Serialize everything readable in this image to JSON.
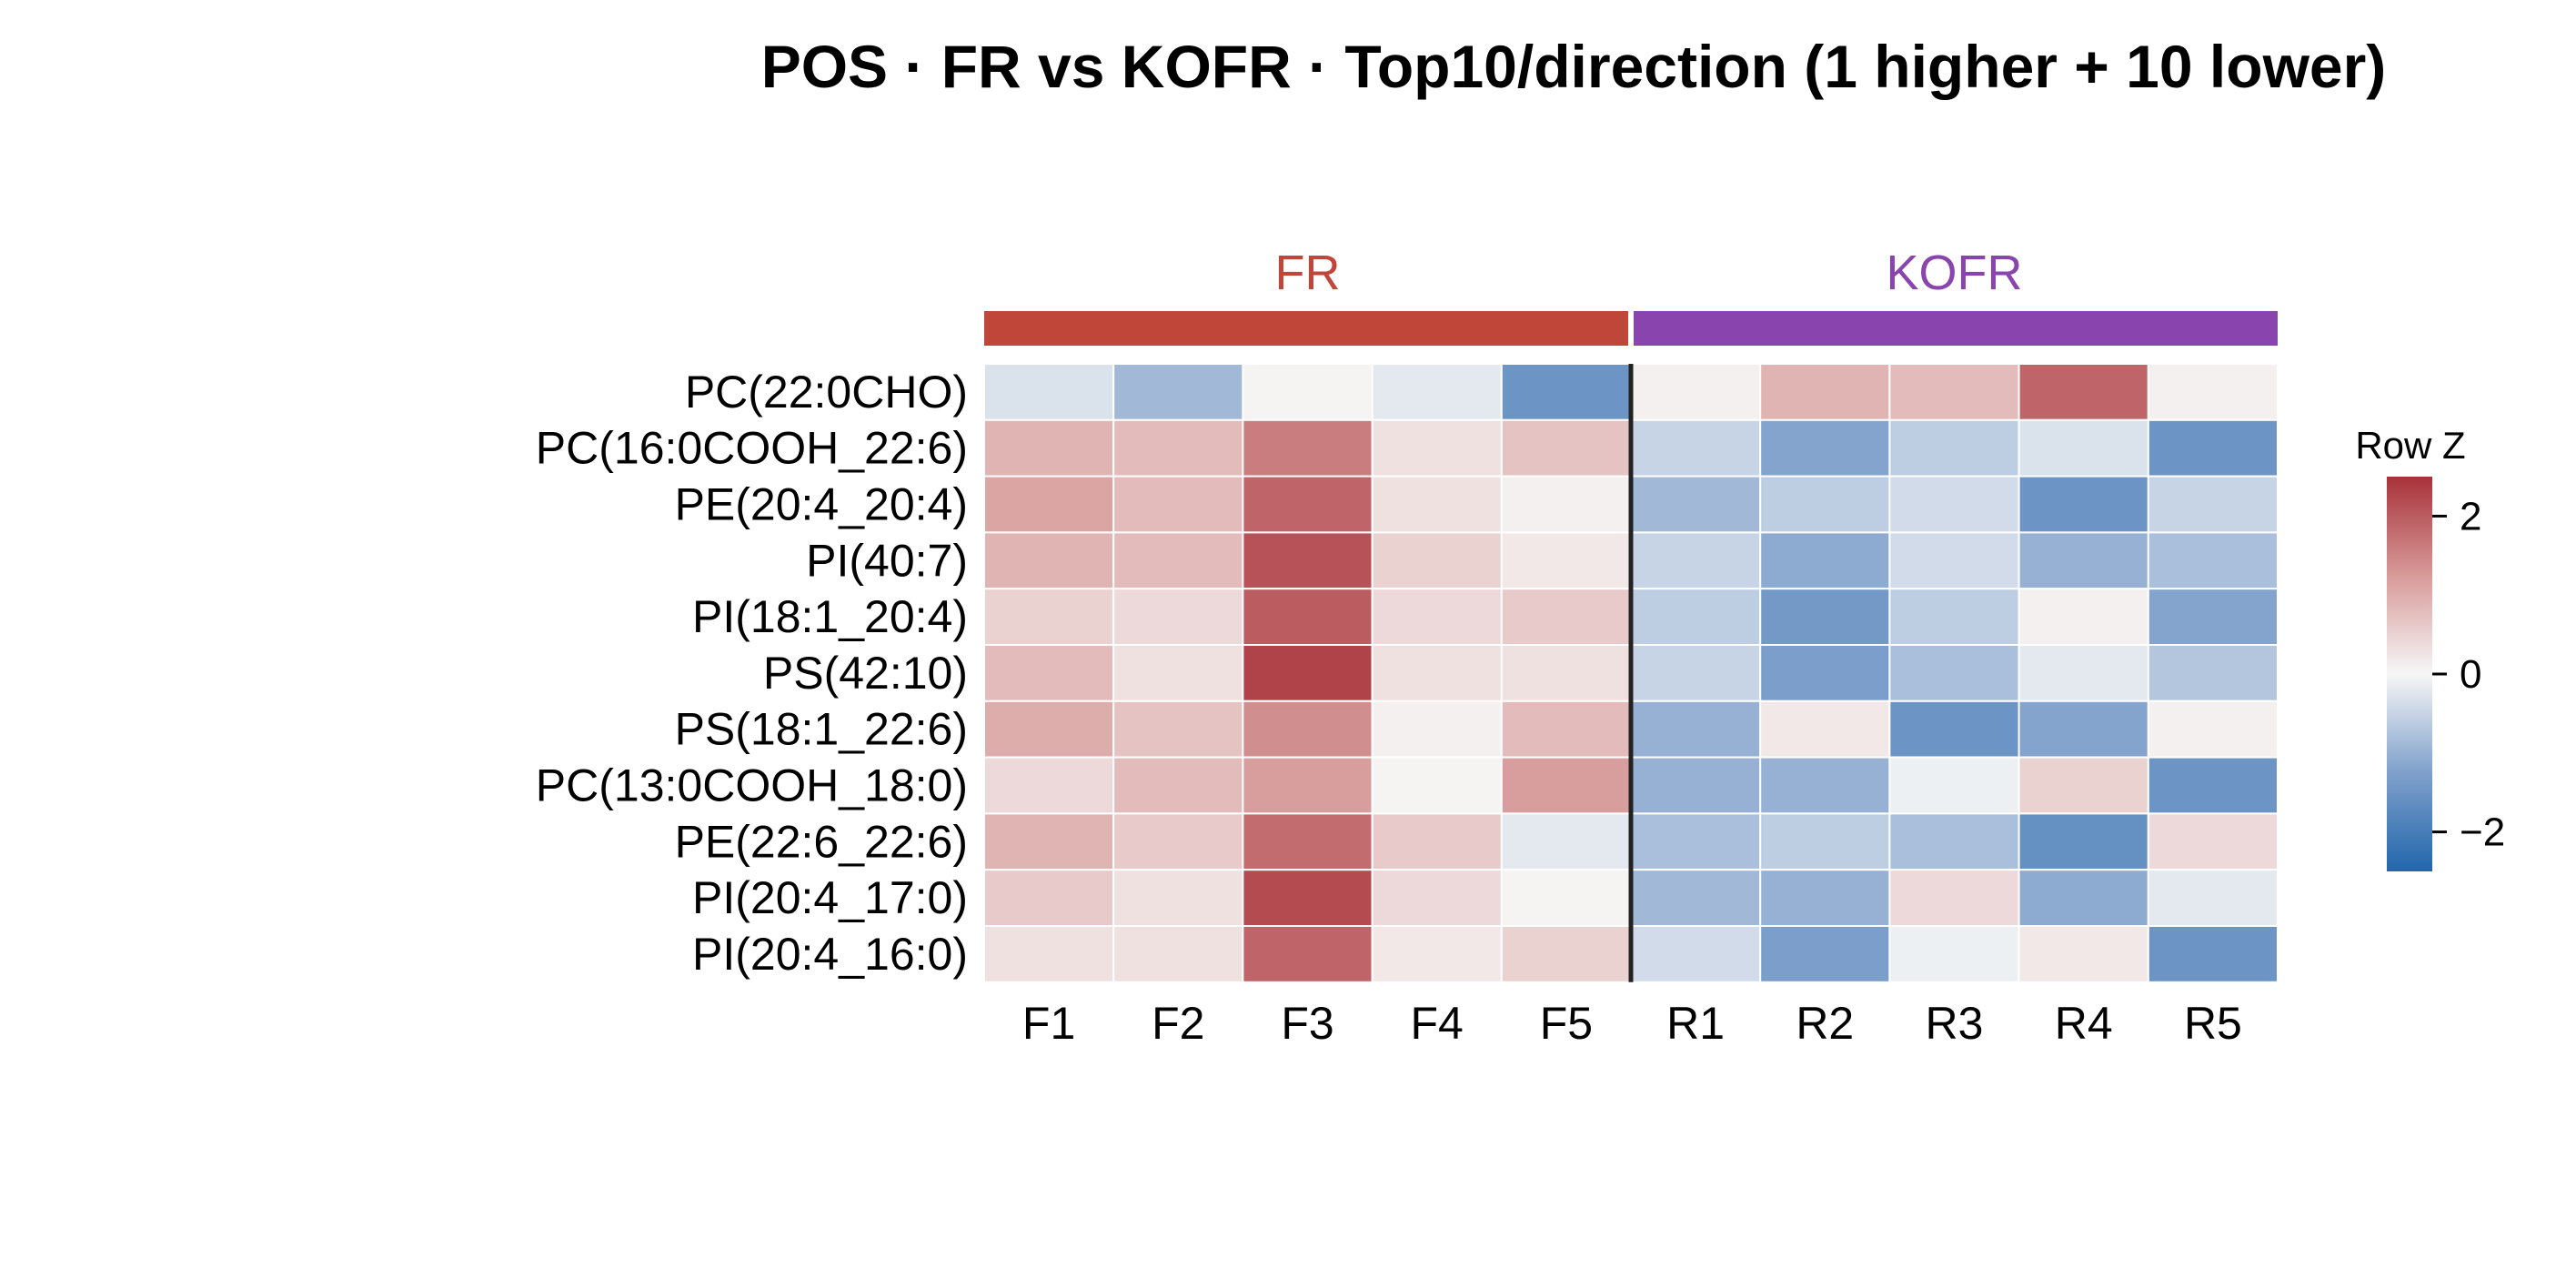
{
  "chart_data": {
    "type": "heatmap",
    "title": "POS · FR vs KOFR · Top10/direction (1 higher + 10 lower)",
    "groups": [
      {
        "name": "FR",
        "color": "#c0463a",
        "columns": [
          "F1",
          "F2",
          "F3",
          "F4",
          "F5"
        ]
      },
      {
        "name": "KOFR",
        "color": "#8a44ad",
        "columns": [
          "R1",
          "R2",
          "R3",
          "R4",
          "R5"
        ]
      }
    ],
    "columns": [
      "F1",
      "F2",
      "F3",
      "F4",
      "F5",
      "R1",
      "R2",
      "R3",
      "R4",
      "R5"
    ],
    "rows": [
      "PC(22:0CHO)",
      "PC(16:0COOH_22:6)",
      "PE(20:4_20:4)",
      "PI(40:7)",
      "PI(18:1_20:4)",
      "PS(42:10)",
      "PS(18:1_22:6)",
      "PC(13:0COOH_18:0)",
      "PE(22:6_22:6)",
      "PI(20:4_17:0)",
      "PI(20:4_16:0)"
    ],
    "values": [
      [
        -0.3,
        -0.9,
        0.05,
        -0.2,
        -1.5,
        0.1,
        0.9,
        0.8,
        1.9,
        0.1
      ],
      [
        0.9,
        0.8,
        1.6,
        0.3,
        0.7,
        -0.5,
        -1.2,
        -0.6,
        -0.3,
        -1.5
      ],
      [
        1.1,
        0.8,
        1.9,
        0.3,
        0.1,
        -0.9,
        -0.6,
        -0.4,
        -1.5,
        -0.5
      ],
      [
        0.9,
        0.8,
        2.1,
        0.5,
        0.2,
        -0.5,
        -1.1,
        -0.4,
        -1.0,
        -0.8
      ],
      [
        0.5,
        0.4,
        2.0,
        0.4,
        0.6,
        -0.6,
        -1.4,
        -0.6,
        0.1,
        -1.2
      ],
      [
        0.8,
        0.3,
        2.3,
        0.3,
        0.3,
        -0.5,
        -1.3,
        -0.8,
        -0.2,
        -0.7
      ],
      [
        1.0,
        0.7,
        1.4,
        0.1,
        0.8,
        -1.0,
        0.2,
        -1.5,
        -1.2,
        0.1
      ],
      [
        0.4,
        0.8,
        1.2,
        0.05,
        1.2,
        -1.0,
        -1.0,
        -0.1,
        0.5,
        -1.5
      ],
      [
        0.9,
        0.6,
        1.8,
        0.6,
        -0.2,
        -0.8,
        -0.6,
        -0.8,
        -1.6,
        0.4
      ],
      [
        0.6,
        0.3,
        2.2,
        0.4,
        0.05,
        -0.9,
        -1.0,
        0.4,
        -1.1,
        -0.2
      ],
      [
        0.3,
        0.3,
        1.9,
        0.2,
        0.5,
        -0.4,
        -1.3,
        -0.1,
        0.2,
        -1.5
      ]
    ],
    "colorbar": {
      "title": "Row Z",
      "ticks": [
        2,
        0,
        -2
      ],
      "tick_labels": [
        "2",
        "0",
        "−2"
      ],
      "range": [
        -2.5,
        2.5
      ]
    },
    "colormap": {
      "low": "#2166ac",
      "mid": "#f7f7f7",
      "high": "#b2182b"
    },
    "xlabel": "",
    "ylabel": ""
  }
}
